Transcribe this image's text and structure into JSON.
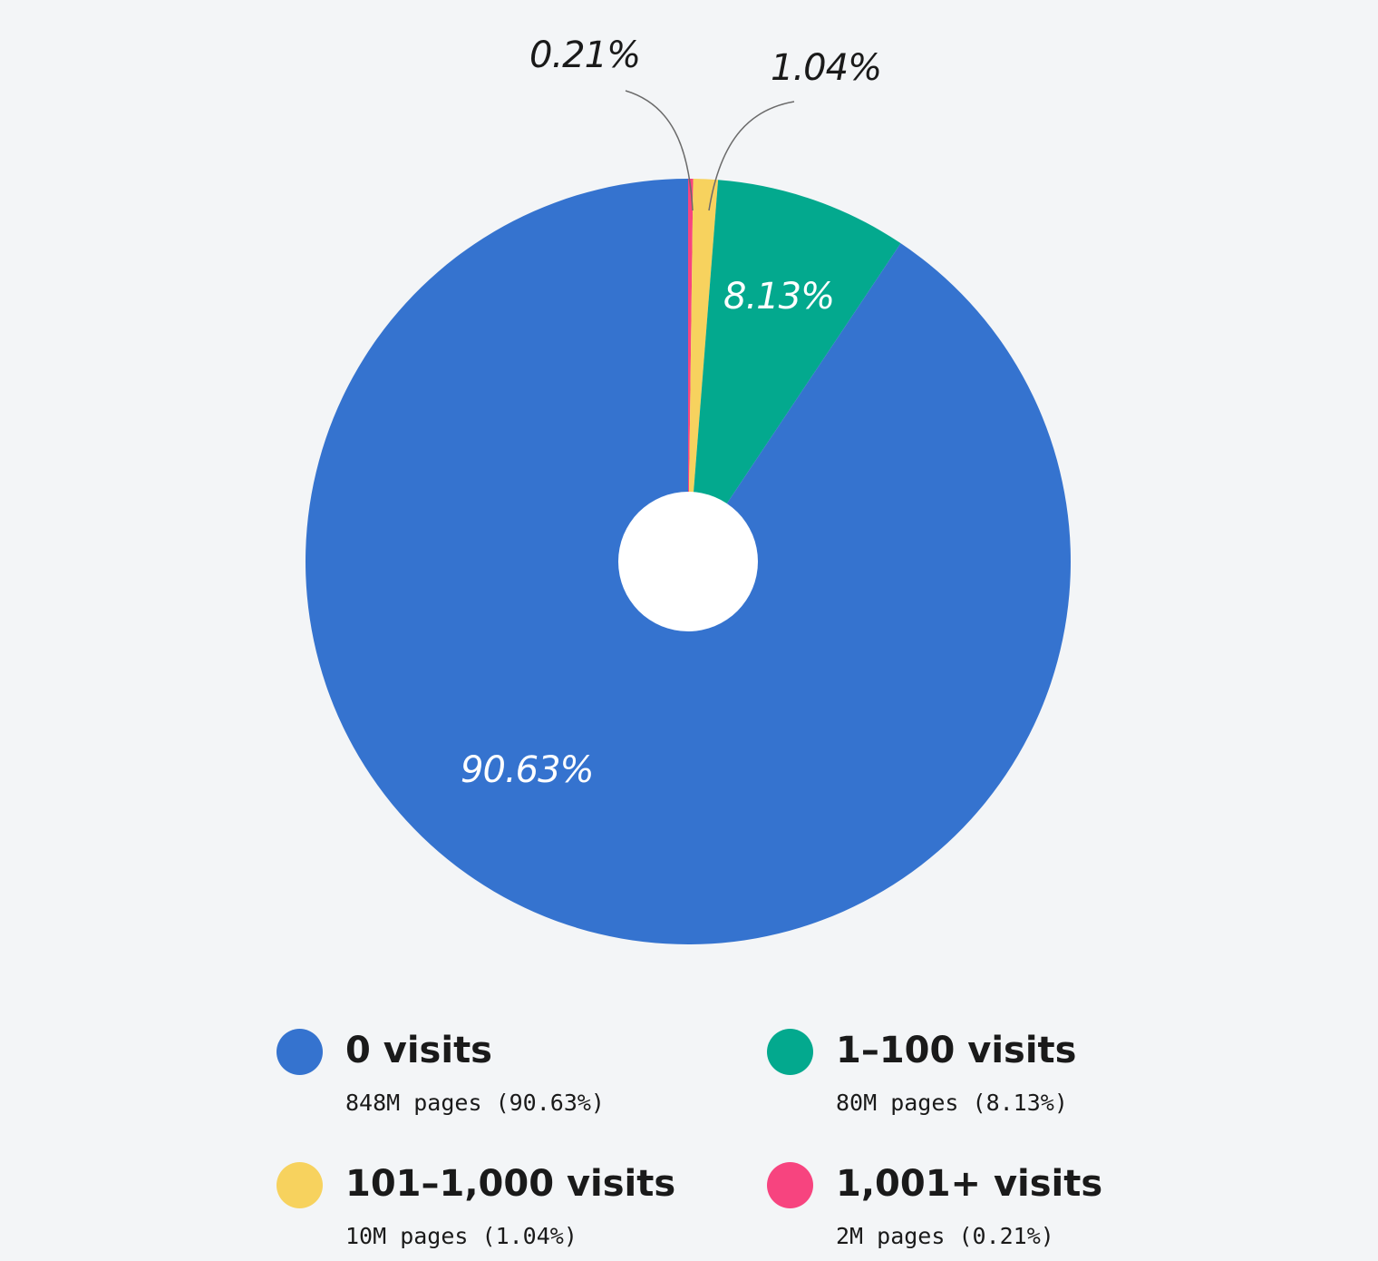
{
  "chart_data": {
    "type": "pie",
    "title": "",
    "donut_hole": true,
    "start_angle_deg": 0,
    "direction": "clockwise",
    "slices": [
      {
        "key": "s1001",
        "label": "1,001+ visits",
        "value": 0.21,
        "pages": "2M",
        "color": "#f7447f",
        "display": "0.21%",
        "subtitle": "2M pages (0.21%)"
      },
      {
        "key": "s101",
        "label": "101–1,000 visits",
        "value": 1.04,
        "pages": "10M",
        "color": "#f7d25e",
        "display": "1.04%",
        "subtitle": "10M pages (1.04%)"
      },
      {
        "key": "s1",
        "label": "1–100 visits",
        "value": 8.13,
        "pages": "80M",
        "color": "#03a98e",
        "display": "8.13%",
        "subtitle": "80M pages (8.13%)"
      },
      {
        "key": "s0",
        "label": "0 visits",
        "value": 90.63,
        "pages": "848M",
        "color": "#3573cf",
        "display": "90.63%",
        "subtitle": "848M pages (90.63%)"
      }
    ],
    "categories": [
      "0 visits",
      "1–100 visits",
      "101–1,000 visits",
      "1,001+ visits"
    ],
    "values": [
      90.63,
      8.13,
      1.04,
      0.21
    ],
    "legend_position": "bottom",
    "annotations": [
      "0.21%",
      "1.04%",
      "8.13%",
      "90.63%"
    ]
  },
  "labels": {
    "s1001": "0.21%",
    "s101": "1.04%",
    "s1": "8.13%",
    "s0": "90.63%"
  },
  "legend": [
    {
      "title": "0 visits",
      "subtitle": "848M pages (90.63%)",
      "color": "#3573cf"
    },
    {
      "title": "1–100 visits",
      "subtitle": "80M pages (8.13%)",
      "color": "#03a98e"
    },
    {
      "title": "101–1,000 visits",
      "subtitle": "10M pages (1.04%)",
      "color": "#f7d25e"
    },
    {
      "title": "1,001+ visits",
      "subtitle": "2M pages (0.21%)",
      "color": "#f7447f"
    }
  ]
}
